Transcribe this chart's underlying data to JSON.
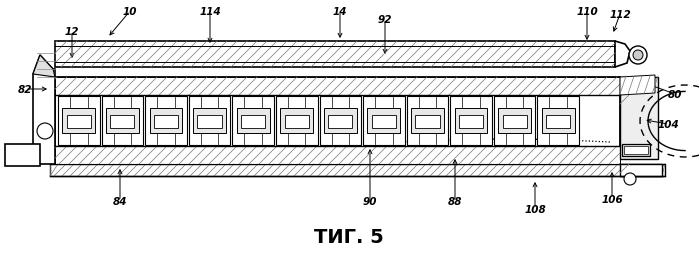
{
  "title": "ΤИГ. 5",
  "title_fontsize": 14,
  "background_color": "#ffffff",
  "fig_width": 6.99,
  "fig_height": 2.55,
  "dpi": 100,
  "label_positions": {
    "10": [
      0.19,
      0.96,
      -135,
      0.05
    ],
    "12": [
      0.1,
      0.86,
      -90,
      0.04
    ],
    "14": [
      0.48,
      0.94,
      -90,
      0.05
    ],
    "80": [
      0.975,
      0.53,
      180,
      0.04
    ],
    "82": [
      0.038,
      0.6,
      0,
      0.04
    ],
    "84": [
      0.175,
      0.1,
      90,
      0.07
    ],
    "88": [
      0.66,
      0.095,
      90,
      0.07
    ],
    "90": [
      0.53,
      0.095,
      90,
      0.09
    ],
    "92": [
      0.555,
      0.88,
      -90,
      0.06
    ],
    "104": [
      0.955,
      0.42,
      180,
      0.03
    ],
    "106": [
      0.88,
      0.095,
      90,
      0.05
    ],
    "108": [
      0.77,
      0.065,
      90,
      0.06
    ],
    "110": [
      0.845,
      0.94,
      -90,
      0.05
    ],
    "112": [
      0.895,
      0.93,
      -90,
      0.04
    ],
    "114": [
      0.3,
      0.9,
      -90,
      0.06
    ]
  }
}
